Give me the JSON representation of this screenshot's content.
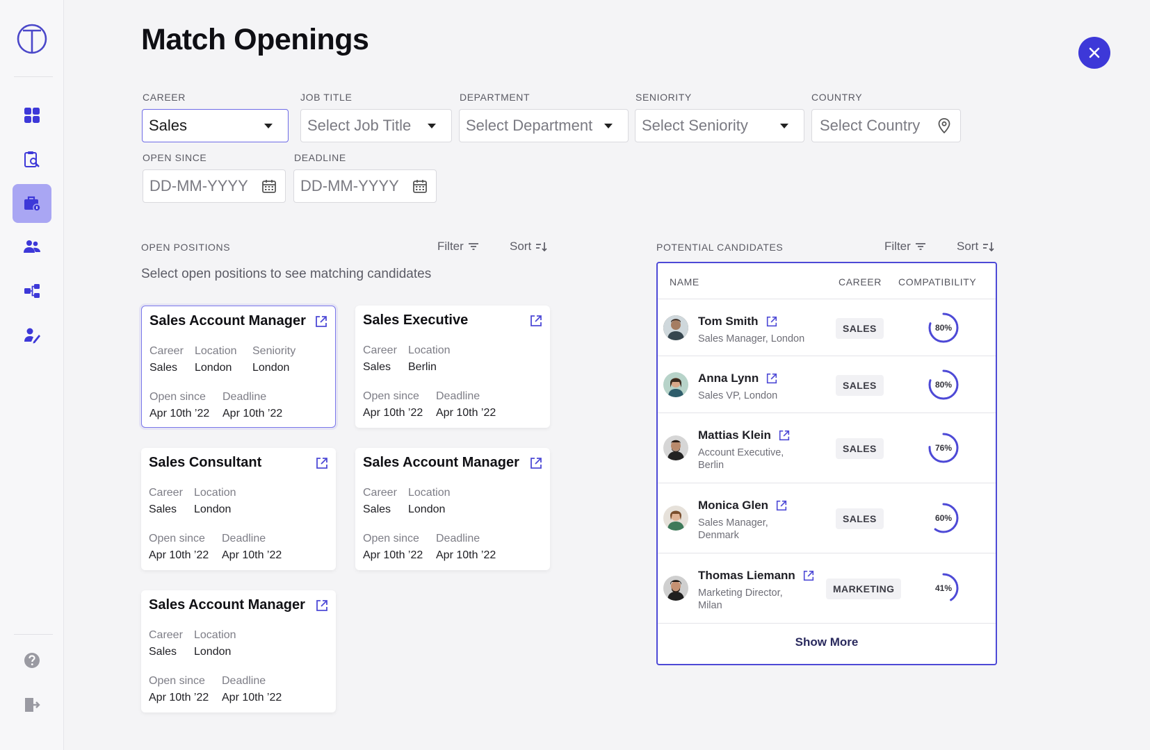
{
  "page": {
    "title": "Match Openings"
  },
  "icons": {
    "logo": "logo-icon",
    "nav": [
      "dashboard-icon",
      "clipboard-search-icon",
      "briefcase-icon",
      "people-icon",
      "org-chart-icon",
      "user-edit-icon"
    ],
    "footer": [
      "help-icon",
      "logout-icon"
    ],
    "close": "close-icon",
    "calendar": "calendar-icon",
    "location": "location-pin-icon",
    "external": "external-link-icon",
    "filter": "filter-icon",
    "sort": "sort-icon"
  },
  "colors": {
    "accent": "#3d38d8",
    "active_nav": "#a9a6f3",
    "ring": "#4d49d6"
  },
  "filters": {
    "career": {
      "label": "CAREER",
      "value": "Sales"
    },
    "job_title": {
      "label": "JOB TITLE",
      "placeholder": "Select Job Title"
    },
    "department": {
      "label": "DEPARTMENT",
      "placeholder": "Select Department"
    },
    "seniority": {
      "label": "SENIORITY",
      "placeholder": "Select Seniority"
    },
    "country": {
      "label": "COUNTRY",
      "placeholder": "Select Country"
    },
    "open_since": {
      "label": "OPEN SINCE",
      "placeholder": "DD-MM-YYYY"
    },
    "deadline": {
      "label": "DEADLINE",
      "placeholder": "DD-MM-YYYY"
    }
  },
  "open_positions": {
    "label": "OPEN POSITIONS",
    "filter_label": "Filter",
    "sort_label": "Sort",
    "hint": "Select open positions to see matching candidates",
    "cards": [
      {
        "title": "Sales Account Manager",
        "career_k": "Career",
        "career": "Sales",
        "location_k": "Location",
        "location": "London",
        "seniority_k": "Seniority",
        "seniority": "London",
        "open_k": "Open since",
        "open": "Apr 10th ’22",
        "deadline_k": "Deadline",
        "deadline": "Apr 10th ’22"
      },
      {
        "title": "Sales Executive",
        "career_k": "Career",
        "career": "Sales",
        "location_k": "Location",
        "location": "Berlin",
        "open_k": "Open since",
        "open": "Apr 10th ’22",
        "deadline_k": "Deadline",
        "deadline": "Apr 10th ’22"
      },
      {
        "title": "Sales Consultant",
        "career_k": "Career",
        "career": "Sales",
        "location_k": "Location",
        "location": "London",
        "open_k": "Open since",
        "open": "Apr 10th ’22",
        "deadline_k": "Deadline",
        "deadline": "Apr 10th ’22"
      },
      {
        "title": "Sales Account Manager",
        "career_k": "Career",
        "career": "Sales",
        "location_k": "Location",
        "location": "London",
        "open_k": "Open since",
        "open": "Apr 10th ’22",
        "deadline_k": "Deadline",
        "deadline": "Apr 10th ’22"
      },
      {
        "title": "Sales Account Manager",
        "career_k": "Career",
        "career": "Sales",
        "location_k": "Location",
        "location": "London",
        "open_k": "Open since",
        "open": "Apr 10th ’22",
        "deadline_k": "Deadline",
        "deadline": "Apr 10th ’22"
      }
    ]
  },
  "candidates": {
    "label": "POTENTIAL CANDIDATES",
    "filter_label": "Filter",
    "sort_label": "Sort",
    "columns": [
      "NAME",
      "CAREER",
      "COMPATIBILITY"
    ],
    "rows": [
      {
        "name": "Tom Smith",
        "sub1": "Sales Manager, London",
        "sub2": "",
        "career": "SALES",
        "compat": 0.8,
        "compat_label": "80%"
      },
      {
        "name": "Anna Lynn",
        "sub1": "Sales VP, London",
        "sub2": "",
        "career": "SALES",
        "compat": 0.8,
        "compat_label": "80%"
      },
      {
        "name": "Mattias Klein",
        "sub1": "Account Executive,",
        "sub2": "Berlin",
        "career": "SALES",
        "compat": 0.76,
        "compat_label": "76%"
      },
      {
        "name": "Monica Glen",
        "sub1": "Sales Manager,",
        "sub2": "Denmark",
        "career": "SALES",
        "compat": 0.6,
        "compat_label": "60%"
      },
      {
        "name": "Thomas Liemann",
        "sub1": "Marketing Director,",
        "sub2": "Milan",
        "career": "MARKETING",
        "compat": 0.41,
        "compat_label": "41%"
      }
    ],
    "show_more": "Show More"
  }
}
